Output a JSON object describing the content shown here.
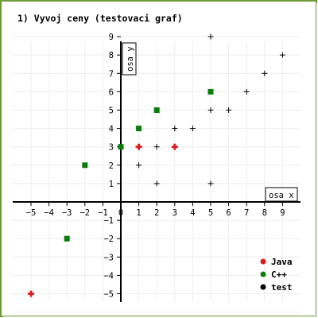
{
  "chart_data": {
    "type": "scatter",
    "title": "1) Vyvoj ceny (testovaci graf)",
    "xlabel": "osa x",
    "ylabel": "osa y",
    "xlim": [
      -5.5,
      9.8
    ],
    "ylim": [
      -6.0,
      9.8
    ],
    "x_ticks": [
      -5,
      -4,
      -3,
      -2,
      -1,
      0,
      1,
      2,
      3,
      4,
      5,
      6,
      7,
      8,
      9
    ],
    "y_ticks": [
      -5,
      -4,
      -3,
      -2,
      -1,
      1,
      2,
      3,
      4,
      5,
      6,
      7,
      8,
      9
    ],
    "grid": true,
    "legend_position": "bottom-right",
    "series": [
      {
        "name": "C++",
        "color": "#0a7d0a",
        "marker": "square",
        "points": [
          {
            "x": -3,
            "y": -2
          },
          {
            "x": -2,
            "y": 2
          },
          {
            "x": 0,
            "y": 3
          },
          {
            "x": 1,
            "y": 4
          },
          {
            "x": 2,
            "y": 5
          },
          {
            "x": 5,
            "y": 6
          }
        ]
      },
      {
        "name": "test",
        "color": "#000000",
        "marker": "plus",
        "points": [
          {
            "x": 1,
            "y": 2
          },
          {
            "x": 1,
            "y": 3
          },
          {
            "x": 2,
            "y": 1
          },
          {
            "x": 2,
            "y": 3
          },
          {
            "x": 3,
            "y": 4
          },
          {
            "x": 4,
            "y": 4
          },
          {
            "x": 5,
            "y": 1
          },
          {
            "x": 5,
            "y": 5
          },
          {
            "x": 5,
            "y": 9
          },
          {
            "x": 6,
            "y": 5
          },
          {
            "x": 7,
            "y": 6
          },
          {
            "x": 8,
            "y": 7
          },
          {
            "x": 9,
            "y": 8
          }
        ]
      },
      {
        "name": "Java",
        "color": "#e31a1a",
        "marker": "plus-bold",
        "points": [
          {
            "x": -5,
            "y": -5
          },
          {
            "x": 1,
            "y": 3
          },
          {
            "x": 3,
            "y": 3
          }
        ]
      }
    ],
    "legend": [
      {
        "name": "Java",
        "color": "#e31a1a"
      },
      {
        "name": "C++",
        "color": "#0a7d0a"
      },
      {
        "name": "test",
        "color": "#000000"
      }
    ]
  },
  "colors": {
    "frame_border": "#6f9a3a",
    "grid": "#eeeeee",
    "axis": "#000000"
  }
}
